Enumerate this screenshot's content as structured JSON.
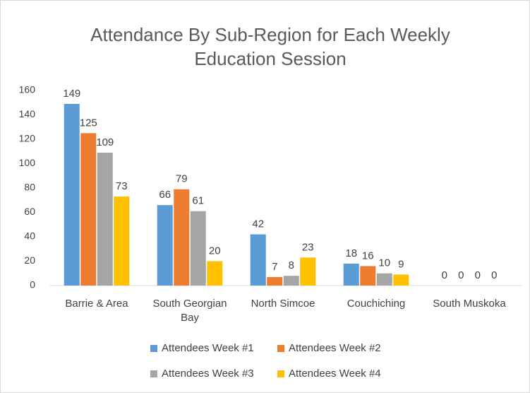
{
  "chart_data": {
    "type": "bar",
    "title": "Attendance By Sub-Region for Each Weekly Education Session",
    "categories": [
      "Barrie & Area",
      "South Georgian Bay",
      "North Simcoe",
      "Couchiching",
      "South Muskoka"
    ],
    "series": [
      {
        "name": "Attendees Week #1",
        "color": "#5b9bd5",
        "values": [
          149,
          66,
          42,
          18,
          0
        ]
      },
      {
        "name": "Attendees Week #2",
        "color": "#ed7d31",
        "values": [
          125,
          79,
          7,
          16,
          0
        ]
      },
      {
        "name": "Attendees Week #3",
        "color": "#a5a5a5",
        "values": [
          109,
          61,
          8,
          10,
          0
        ]
      },
      {
        "name": "Attendees Week #4",
        "color": "#ffc000",
        "values": [
          73,
          20,
          23,
          9,
          0
        ]
      }
    ],
    "ylim": [
      0,
      160
    ],
    "yticks": [
      0,
      20,
      40,
      60,
      80,
      100,
      120,
      140,
      160
    ],
    "grid": false
  }
}
